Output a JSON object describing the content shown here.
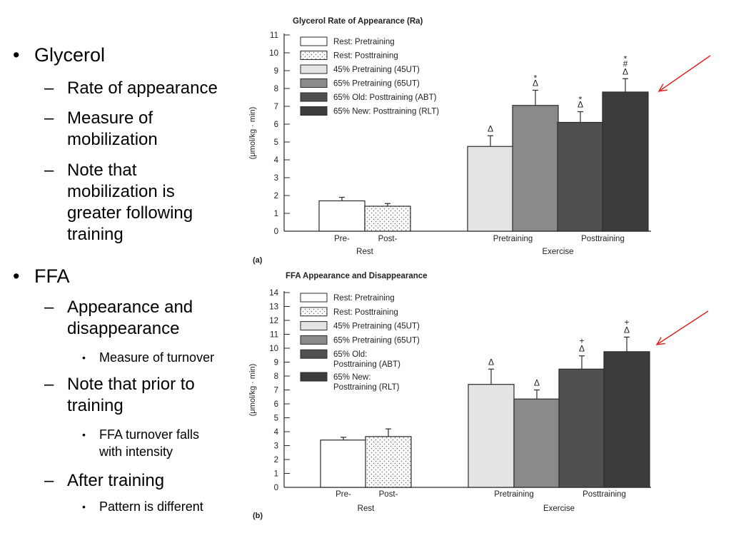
{
  "bullets": {
    "glycerol": "Glycerol",
    "rate": "Rate of appearance",
    "measure_l1": "Measure of",
    "measure_l2": "mobilization",
    "note1_l1": "Note that",
    "note1_l2": "mobilization is",
    "note1_l3": "greater following",
    "note1_l4": "training",
    "ffa": "FFA",
    "app_l1": "Appearance and",
    "app_l2": "disappearance",
    "turnover": "Measure of turnover",
    "note2_l1": "Note that prior to",
    "note2_l2": "training",
    "falls_l1": "FFA turnover falls",
    "falls_l2": "with intensity",
    "after": "After training",
    "pattern": "Pattern is different"
  },
  "chart_data": [
    {
      "type": "bar",
      "panel": "(a)",
      "title": "Glycerol Rate of Appearance (Ra)",
      "ylabel": "(μmol/kg · min)",
      "ylim": [
        0,
        11
      ],
      "yticks": [
        "0",
        "1",
        "2",
        "3",
        "4",
        "5",
        "6",
        "7",
        "8",
        "9",
        "10",
        "11"
      ],
      "groups": [
        {
          "name": "Rest",
          "ticks": [
            "Pre-",
            "Post-"
          ]
        },
        {
          "name": "Exercise",
          "ticks": [
            "Pretraining",
            "Posttraining"
          ]
        }
      ],
      "legend": [
        "Rest: Pretraining",
        "Rest: Posttraining",
        "45% Pretraining (45UT)",
        "65% Pretraining (65UT)",
        "65% Old: Posttraining (ABT)",
        "65% New: Posttraining (RLT)"
      ],
      "bars": [
        {
          "series": "Rest: Pretraining",
          "value": 1.7,
          "err": 0.2,
          "marks": []
        },
        {
          "series": "Rest: Posttraining",
          "value": 1.4,
          "err": 0.15,
          "marks": []
        },
        {
          "series": "45% Pretraining (45UT)",
          "value": 4.75,
          "err": 0.6,
          "marks": [
            "Δ"
          ]
        },
        {
          "series": "65% Pretraining (65UT)",
          "value": 7.05,
          "err": 0.85,
          "marks": [
            "Δ",
            "*"
          ]
        },
        {
          "series": "65% Old: Posttraining (ABT)",
          "value": 6.1,
          "err": 0.6,
          "marks": [
            "Δ",
            "*"
          ]
        },
        {
          "series": "65% New: Posttraining (RLT)",
          "value": 7.8,
          "err": 0.75,
          "marks": [
            "Δ",
            "#",
            "*"
          ]
        }
      ]
    },
    {
      "type": "bar",
      "panel": "(b)",
      "title": "FFA Appearance and Disappearance",
      "ylabel": "(μmol/kg · min)",
      "ylim": [
        0,
        14
      ],
      "yticks": [
        "0",
        "1",
        "2",
        "3",
        "4",
        "5",
        "6",
        "7",
        "8",
        "9",
        "10",
        "11",
        "12",
        "13",
        "14"
      ],
      "groups": [
        {
          "name": "Rest",
          "ticks": [
            "Pre-",
            "Post-"
          ]
        },
        {
          "name": "Exercise",
          "ticks": [
            "Pretraining",
            "Posttraining"
          ]
        }
      ],
      "legend": [
        "Rest: Pretraining",
        "Rest: Posttraining",
        "45% Pretraining (45UT)",
        "65% Pretraining (65UT)",
        "65% Old:|Posttraining (ABT)",
        "65% New:|Posttraining (RLT)"
      ],
      "bars": [
        {
          "series": "Rest: Pretraining",
          "value": 3.4,
          "err": 0.2,
          "marks": []
        },
        {
          "series": "Rest: Posttraining",
          "value": 3.65,
          "err": 0.55,
          "marks": []
        },
        {
          "series": "45% Pretraining (45UT)",
          "value": 7.4,
          "err": 1.1,
          "marks": [
            "Δ"
          ]
        },
        {
          "series": "65% Pretraining (65UT)",
          "value": 6.35,
          "err": 0.65,
          "marks": [
            "Δ"
          ]
        },
        {
          "series": "65% Old: Posttraining (ABT)",
          "value": 8.5,
          "err": 0.95,
          "marks": [
            "Δ",
            "+"
          ]
        },
        {
          "series": "65% New: Posttraining (RLT)",
          "value": 9.75,
          "err": 1.05,
          "marks": [
            "Δ",
            "+"
          ]
        }
      ]
    }
  ],
  "colors": {
    "fills": [
      "#ffffff",
      "#f6f6f6",
      "#e4e4e4",
      "#8a8a8a",
      "#505050",
      "#3c3c3c"
    ],
    "arrow": "#e0201a",
    "axis": "#2a2a2a"
  }
}
